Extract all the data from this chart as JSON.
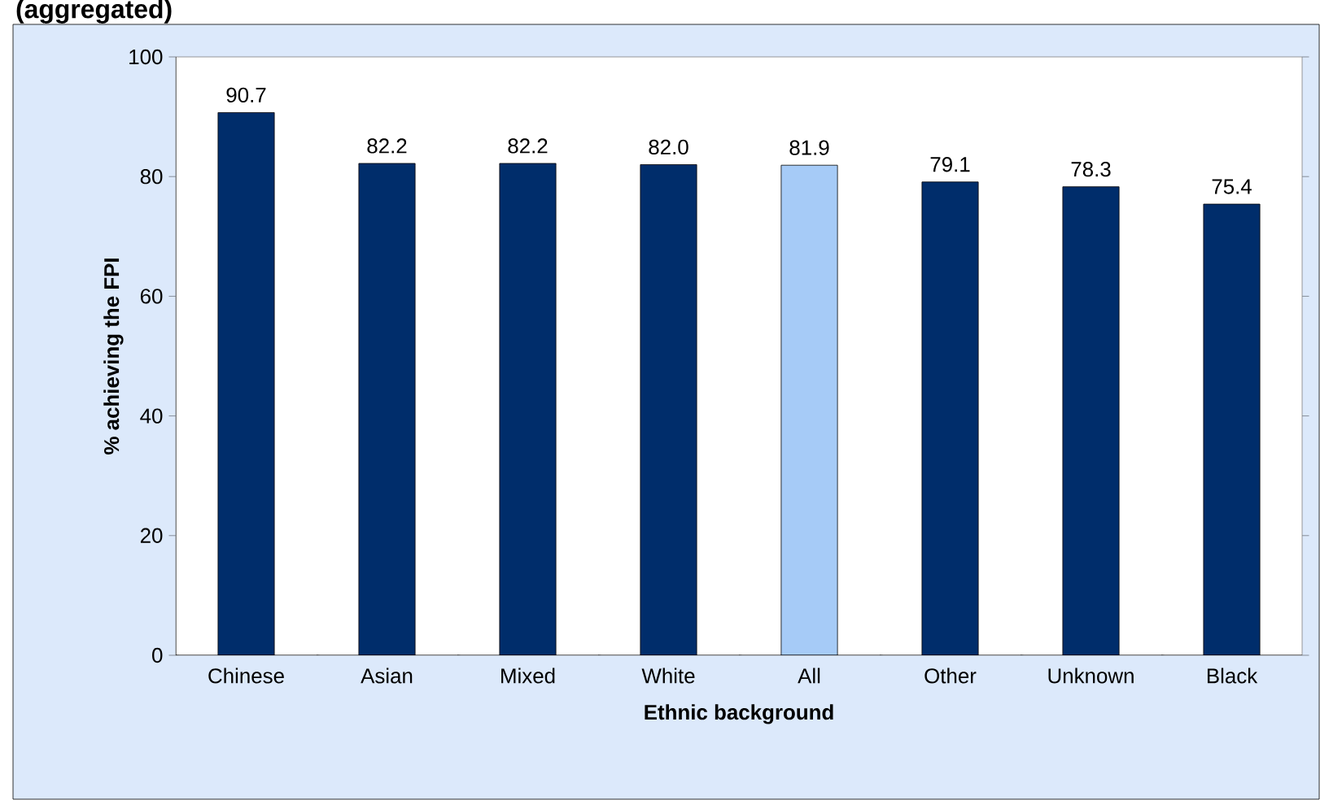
{
  "chart_data": {
    "type": "bar",
    "title": "(aggregated)",
    "xlabel": "Ethnic background",
    "ylabel": "% achieving the FPI",
    "categories": [
      "Chinese",
      "Asian",
      "Mixed",
      "White",
      "All",
      "Other",
      "Unknown",
      "Black"
    ],
    "values": [
      90.7,
      82.2,
      82.2,
      82.0,
      81.9,
      79.1,
      78.3,
      75.4
    ],
    "value_labels": [
      "90.7",
      "82.2",
      "82.2",
      "82.0",
      "81.9",
      "79.1",
      "78.3",
      "75.4"
    ],
    "colors": [
      "#002d6b",
      "#002d6b",
      "#002d6b",
      "#002d6b",
      "#a6cbf7",
      "#002d6b",
      "#002d6b",
      "#002d6b"
    ],
    "ylim": [
      0,
      100
    ],
    "yticks": [
      0,
      20,
      40,
      60,
      80,
      100
    ]
  }
}
